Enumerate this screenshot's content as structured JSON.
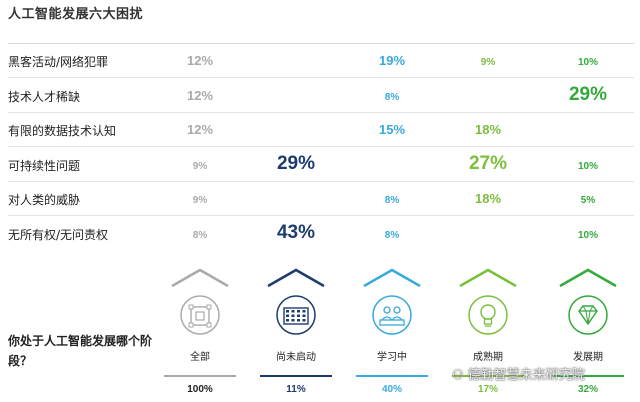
{
  "title": "人工智能发展六大困扰",
  "question": "你处于人工智能发展哪个阶段？",
  "watermark": "德勤智慧未来研究院",
  "colors": {
    "all": "#aaaaaa",
    "not_started": "#1d3c6e",
    "learning": "#3aa9dc",
    "maturing": "#7cbf3c",
    "developing": "#35a93c"
  },
  "chart_data": {
    "type": "table",
    "title": "人工智能发展六大困扰",
    "columns": [
      {
        "name": "全部",
        "icon": "frame-icon",
        "color": "#aaaaaa",
        "pct": "100%"
      },
      {
        "name": "尚未启动",
        "icon": "grid-icon",
        "color": "#1d3c6e",
        "pct": "11%"
      },
      {
        "name": "学习中",
        "icon": "people-icon",
        "color": "#3aa9dc",
        "pct": "40%"
      },
      {
        "name": "成熟期",
        "icon": "lightbulb-icon",
        "color": "#7cbf3c",
        "pct": "17%"
      },
      {
        "name": "发展期",
        "icon": "diamond-icon",
        "color": "#35a93c",
        "pct": "32%"
      }
    ],
    "rows": [
      {
        "label": "黑客活动/网络犯罪",
        "values": [
          "12%",
          "",
          "19%",
          "9%",
          "10%"
        ]
      },
      {
        "label": "技术人才稀缺",
        "values": [
          "12%",
          "",
          "8%",
          "",
          "29%"
        ]
      },
      {
        "label": "有限的数据技术认知",
        "values": [
          "12%",
          "",
          "15%",
          "18%",
          ""
        ]
      },
      {
        "label": "可持续性问题",
        "values": [
          "9%",
          "29%",
          "",
          "27%",
          "10%"
        ]
      },
      {
        "label": "对人类的威胁",
        "values": [
          "9%",
          "",
          "8%",
          "18%",
          "5%"
        ]
      },
      {
        "label": "无所有权/无问责权",
        "values": [
          "8%",
          "43%",
          "8%",
          "",
          "10%"
        ]
      }
    ]
  }
}
